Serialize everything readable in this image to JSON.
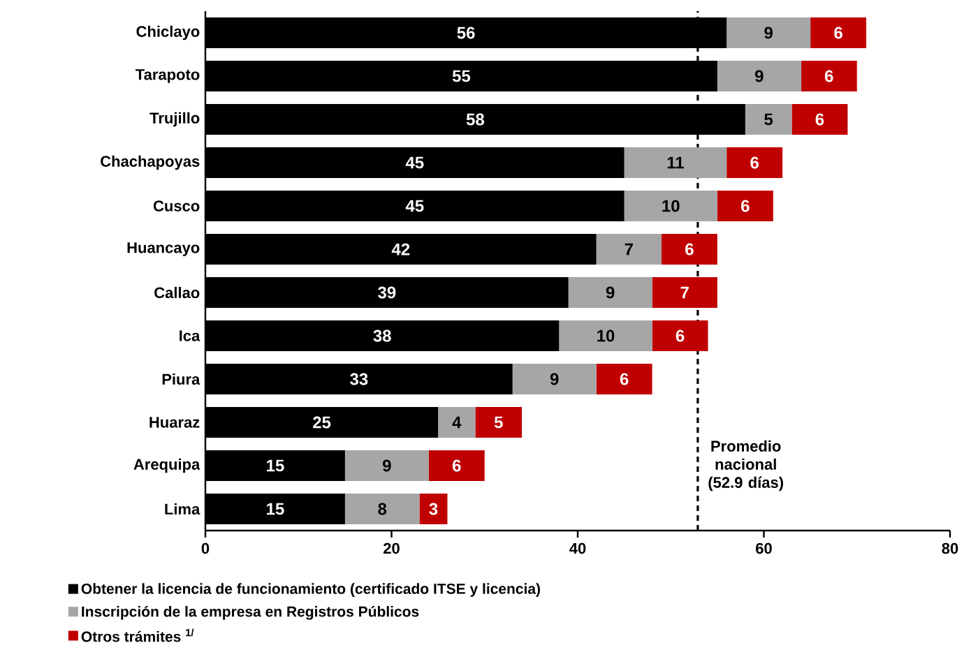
{
  "chart_data": {
    "type": "bar",
    "orientation": "horizontal",
    "stacked": true,
    "categories": [
      "Chiclayo",
      "Tarapoto",
      "Trujillo",
      "Chachapoyas",
      "Cusco",
      "Huancayo",
      "Callao",
      "Ica",
      "Piura",
      "Huaraz",
      "Arequipa",
      "Lima"
    ],
    "series": [
      {
        "name": "Obtener la licencia de funcionamiento (certificado ITSE y licencia)",
        "color": "#000000",
        "values": [
          56,
          55,
          58,
          45,
          45,
          42,
          39,
          38,
          33,
          25,
          15,
          15
        ]
      },
      {
        "name": "Inscripción de la empresa en Registros Públicos",
        "color": "#a6a6a6",
        "values": [
          9,
          9,
          5,
          11,
          10,
          7,
          9,
          10,
          9,
          4,
          9,
          8
        ]
      },
      {
        "name": "Otros trámites $^{1/}$",
        "color": "#c00000",
        "values": [
          6,
          6,
          6,
          6,
          6,
          6,
          7,
          6,
          6,
          5,
          6,
          3
        ]
      }
    ],
    "xlim": [
      0,
      80
    ],
    "xticks": [
      0,
      20,
      40,
      60,
      80
    ],
    "ref_lines": [
      {
        "axis": "x",
        "value": 52.9,
        "label": "Promedio nacional (52.9 días)",
        "line_style": "dashed",
        "color": "#000000"
      }
    ],
    "data_labels": true,
    "legend": "bottom",
    "grid": false
  }
}
